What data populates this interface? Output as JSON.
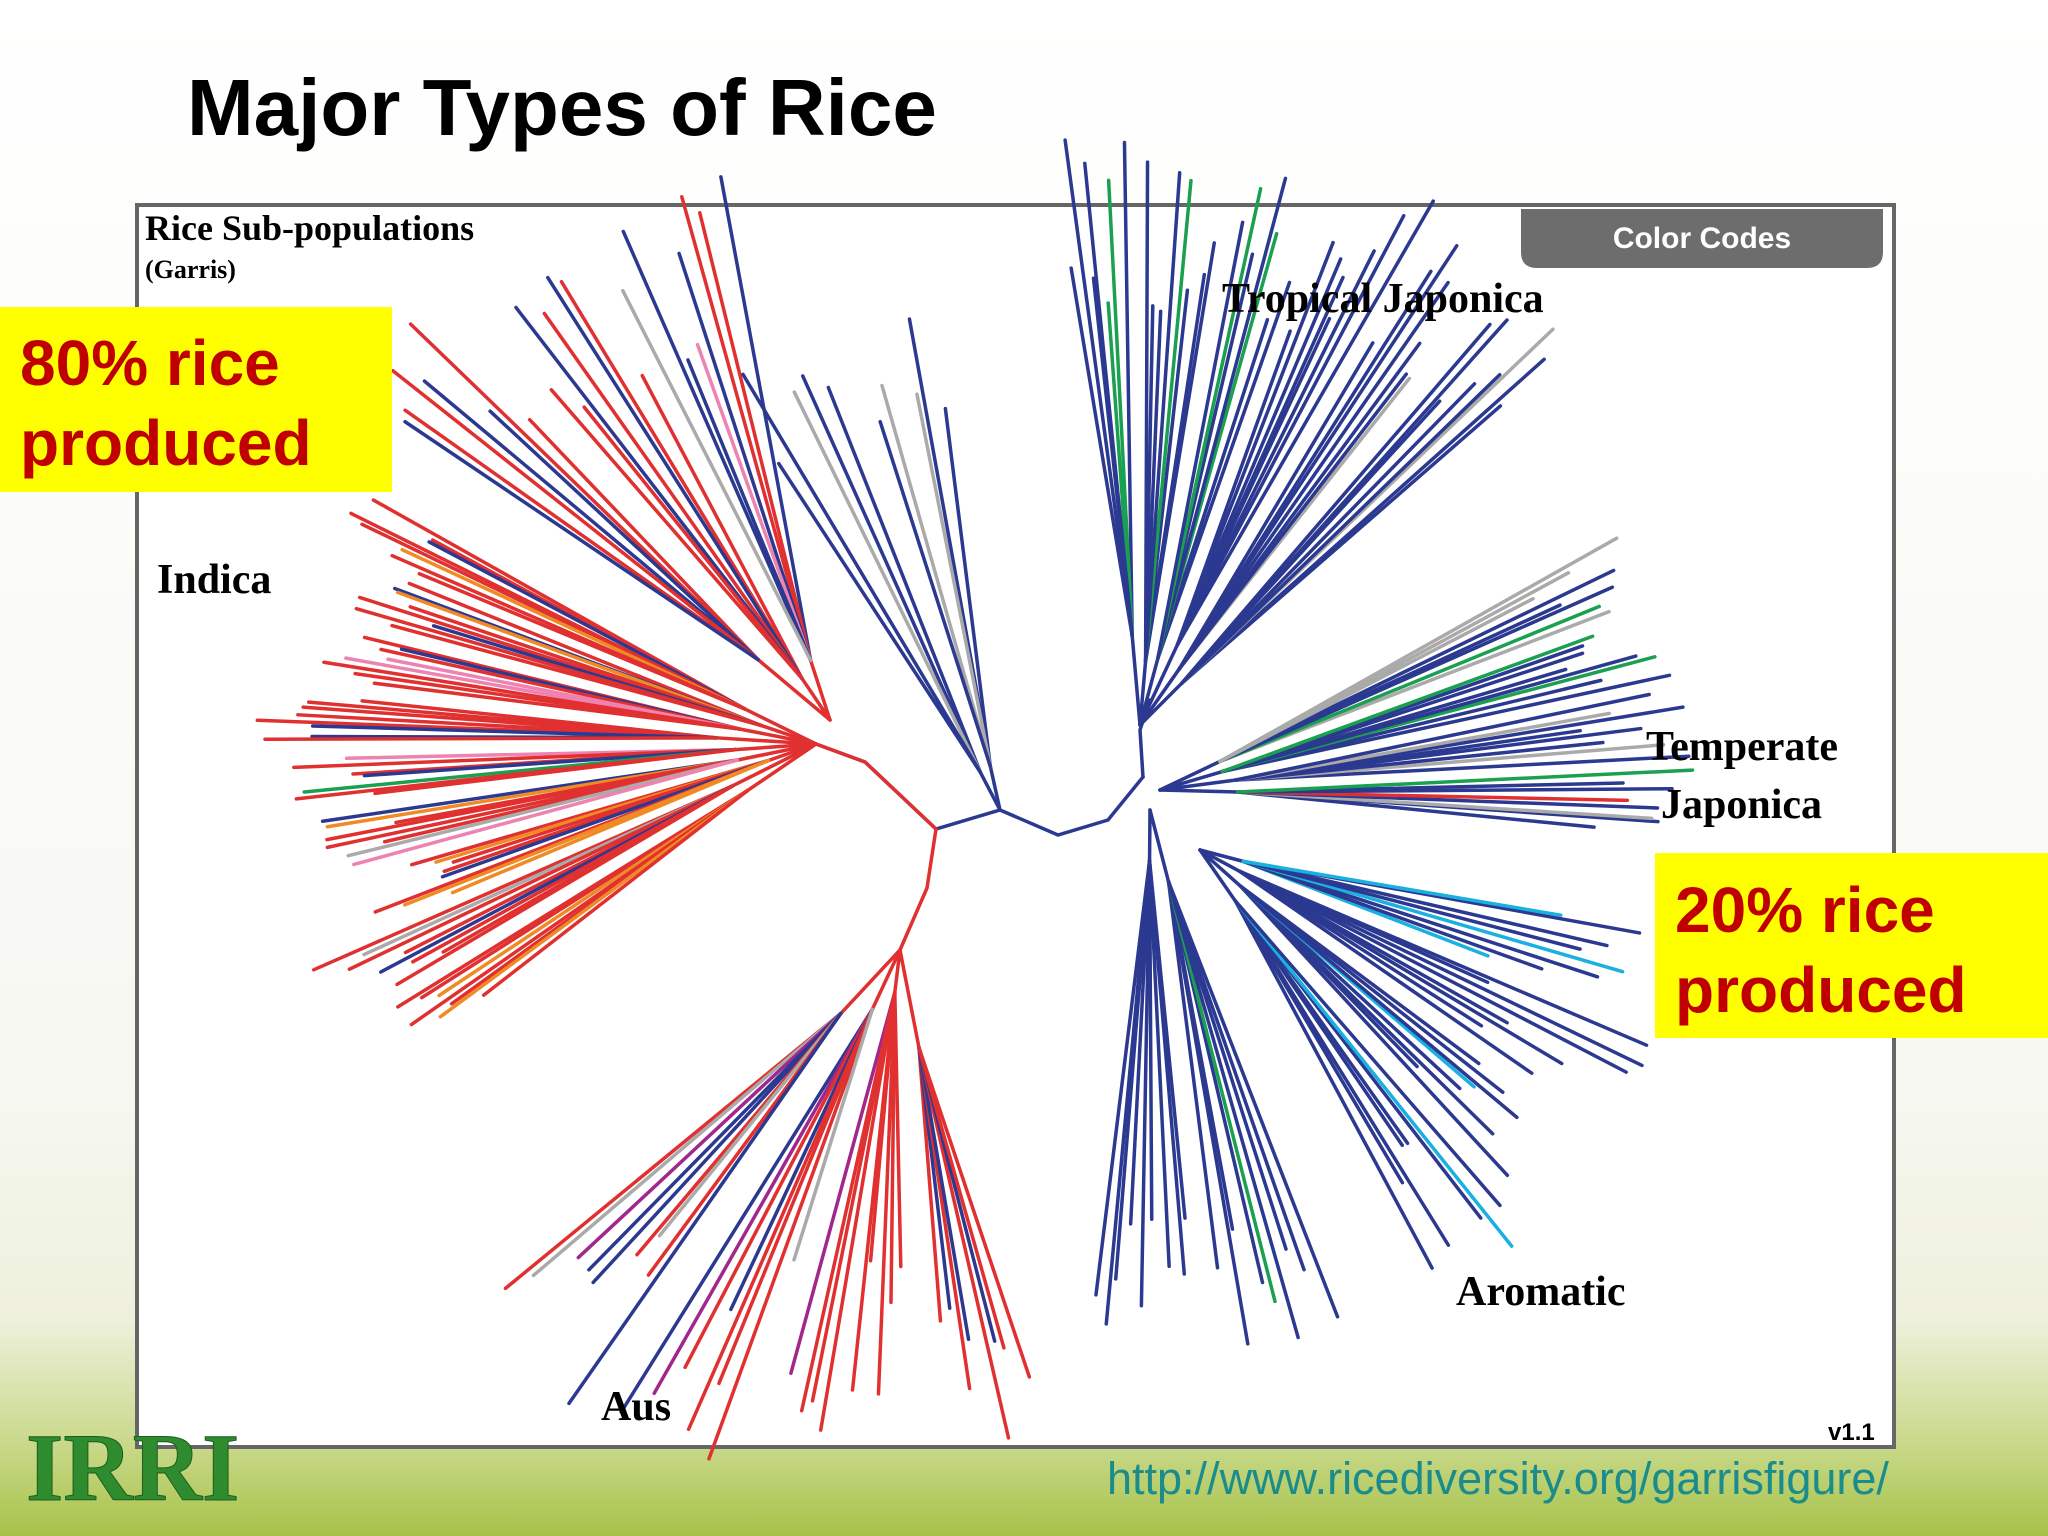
{
  "title": "Major Types of Rice",
  "figure": {
    "title": "Rice Sub-populations",
    "source": "(Garris)",
    "color_codes": "Color Codes",
    "labels": {
      "tropical_japonica": "Tropical Japonica",
      "indica": "Indica",
      "temperate_japonica": [
        "Temperate",
        "Japonica"
      ],
      "aromatic": "Aromatic",
      "aus": "Aus"
    },
    "version": "v1.1"
  },
  "callouts": [
    {
      "lines": [
        "80% rice",
        "produced"
      ]
    },
    {
      "lines": [
        "20% rice",
        "produced"
      ]
    }
  ],
  "url": "http://www.ricediversity.org/garrisfigure/",
  "logo": "IRRI"
}
